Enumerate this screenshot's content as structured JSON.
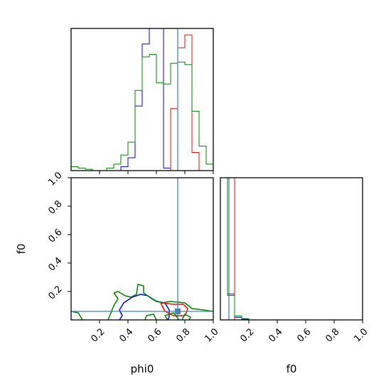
{
  "chart_data": [
    {
      "panel": "phi0 histogram",
      "type": "histogram",
      "xlim": [
        0,
        1
      ],
      "y_ticks_shown": false,
      "bin_edges": [
        0.0,
        0.05,
        0.1,
        0.15,
        0.2,
        0.25,
        0.3,
        0.35,
        0.4,
        0.45,
        0.5,
        0.55,
        0.6,
        0.65,
        0.7,
        0.75,
        0.8,
        0.85,
        0.9,
        0.95,
        1.0
      ],
      "series": [
        {
          "color": "#0000ff",
          "counts": [
            0,
            0,
            0,
            0,
            0,
            0,
            0,
            0.03,
            0.1,
            0.5,
            0.98,
            1.1,
            1.1,
            0.02,
            0.0,
            0,
            0,
            0,
            0,
            0
          ]
        },
        {
          "color": "#ff0000",
          "counts": [
            0,
            0,
            0,
            0,
            0,
            0,
            0,
            0,
            0,
            0,
            0,
            0,
            0,
            0,
            0.48,
            0.95,
            1.05,
            0.14,
            0,
            0
          ]
        },
        {
          "color": "#008000",
          "counts": [
            0.03,
            0.02,
            0.01,
            0,
            0,
            0.02,
            0.05,
            0.12,
            0.22,
            0.62,
            0.88,
            0.9,
            0.68,
            0.67,
            0.83,
            0.84,
            0.82,
            0.46,
            0.19,
            0.05
          ]
        }
      ],
      "truth_line": {
        "x": 0.75,
        "color": "#4682b4"
      }
    },
    {
      "panel": "f0 vs phi0",
      "type": "contour",
      "xlabel": "phi0",
      "ylabel": "f0",
      "xlim": [
        0,
        1
      ],
      "ylim": [
        0,
        1
      ],
      "x_ticks": [
        "0.2",
        "0.4",
        "0.6",
        "0.8",
        "1.0"
      ],
      "y_ticks": [
        "0.2",
        "0.4",
        "0.6",
        "0.8",
        "1.0"
      ],
      "contours": [
        {
          "color": "#0000ff",
          "points": [
            [
              0.34,
              0.0
            ],
            [
              0.36,
              0.03
            ],
            [
              0.34,
              0.07
            ],
            [
              0.37,
              0.12
            ],
            [
              0.43,
              0.16
            ],
            [
              0.49,
              0.18
            ],
            [
              0.54,
              0.17
            ],
            [
              0.6,
              0.13
            ],
            [
              0.66,
              0.12
            ],
            [
              0.69,
              0.07
            ],
            [
              0.69,
              0.02
            ],
            [
              0.68,
              0.0
            ]
          ]
        },
        {
          "color": "#ff0000",
          "points": [
            [
              0.63,
              0.12
            ],
            [
              0.72,
              0.11
            ],
            [
              0.79,
              0.11
            ],
            [
              0.82,
              0.08
            ],
            [
              0.81,
              0.05
            ],
            [
              0.8,
              0.03
            ],
            [
              0.72,
              0.03
            ],
            [
              0.66,
              0.06
            ],
            [
              0.63,
              0.12
            ]
          ]
        },
        {
          "color": "#008000",
          "points": [
            [
              0.3,
              0.19
            ],
            [
              0.33,
              0.2
            ],
            [
              0.38,
              0.17
            ],
            [
              0.42,
              0.16
            ],
            [
              0.46,
              0.18
            ],
            [
              0.47,
              0.25
            ],
            [
              0.51,
              0.24
            ],
            [
              0.51,
              0.19
            ],
            [
              0.58,
              0.14
            ],
            [
              0.64,
              0.12
            ],
            [
              0.7,
              0.13
            ],
            [
              0.8,
              0.12
            ],
            [
              0.85,
              0.08
            ],
            [
              0.93,
              0.07
            ],
            [
              1.0,
              0.06
            ]
          ]
        },
        {
          "color": "#008000",
          "points": [
            [
              0.0,
              0.06
            ],
            [
              0.05,
              0.05
            ],
            [
              0.08,
              0.0
            ]
          ]
        },
        {
          "color": "#008000",
          "points": [
            [
              0.26,
              0.0
            ],
            [
              0.3,
              0.1
            ],
            [
              0.33,
              0.15
            ],
            [
              0.3,
              0.19
            ]
          ]
        },
        {
          "color": "#008000",
          "points": [
            [
              0.52,
              0.0
            ],
            [
              0.53,
              0.03
            ],
            [
              0.58,
              0.04
            ],
            [
              0.6,
              0.0
            ]
          ]
        },
        {
          "color": "#008000",
          "points": [
            [
              0.68,
              0.0
            ],
            [
              0.66,
              0.03
            ],
            [
              0.72,
              0.05
            ],
            [
              0.76,
              0.0
            ]
          ]
        },
        {
          "color": "#008000",
          "points": [
            [
              0.78,
              0.0
            ],
            [
              0.8,
              0.04
            ],
            [
              0.84,
              0.02
            ],
            [
              0.83,
              0.0
            ]
          ]
        }
      ],
      "truth": {
        "x": 0.75,
        "y": 0.06,
        "color": "#4682b4"
      }
    },
    {
      "panel": "f0 histogram",
      "type": "histogram",
      "xlabel": "f0",
      "xlim": [
        0,
        1
      ],
      "x_ticks": [
        "0.2",
        "0.4",
        "0.6",
        "0.8",
        "1.0"
      ],
      "y_ticks_shown": false,
      "bin_edges": [
        0.0,
        0.05,
        0.1,
        0.15,
        0.2,
        0.25,
        0.3,
        0.35,
        0.4,
        0.45,
        0.5,
        0.55,
        0.6,
        0.65,
        0.7,
        0.75,
        0.8,
        0.85,
        0.9,
        0.95,
        1.0
      ],
      "series": [
        {
          "color": "#0000ff",
          "counts": [
            1.1,
            0.2,
            0.02,
            0.005,
            0,
            0,
            0,
            0,
            0,
            0,
            0,
            0,
            0,
            0,
            0,
            0,
            0,
            0,
            0,
            0
          ]
        },
        {
          "color": "#ff0000",
          "counts": [
            1.1,
            1.1,
            0.0,
            0,
            0,
            0,
            0,
            0,
            0,
            0,
            0,
            0,
            0,
            0,
            0,
            0,
            0,
            0,
            0,
            0
          ]
        },
        {
          "color": "#008000",
          "counts": [
            1.1,
            0.19,
            0.03,
            0.01,
            0,
            0,
            0,
            0,
            0,
            0,
            0,
            0,
            0,
            0,
            0,
            0,
            0,
            0,
            0,
            0
          ]
        }
      ],
      "truth_line": {
        "x": 0.06,
        "color": "#4682b4"
      }
    }
  ]
}
